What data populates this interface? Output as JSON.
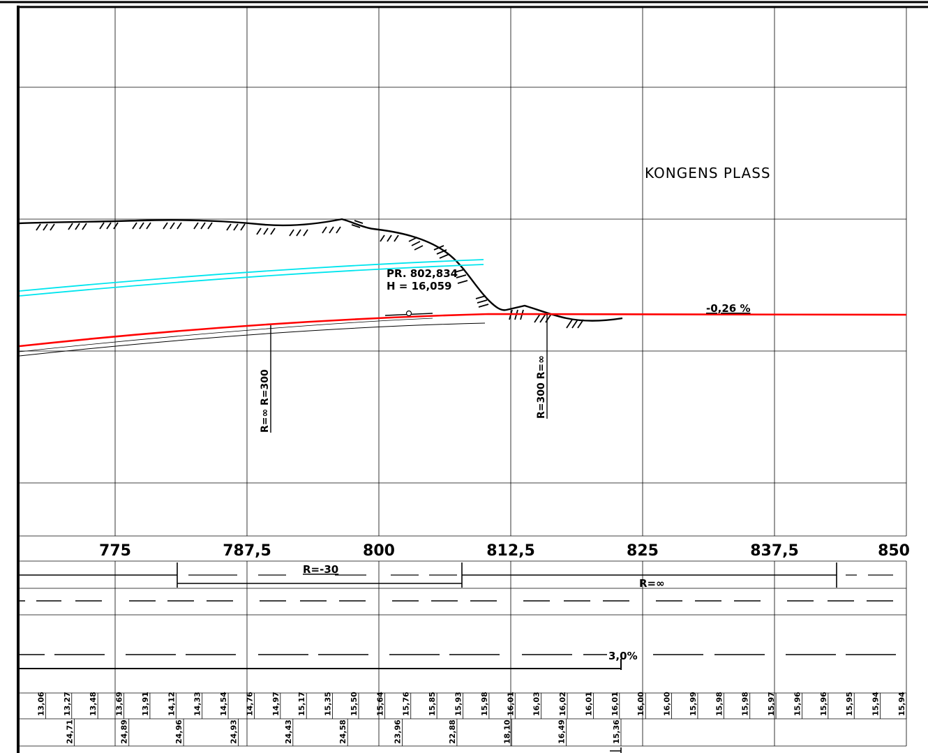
{
  "place_label": "KONGENS PLASS",
  "point_label": {
    "profile": "PR. 802,834",
    "height": "H = 16,059"
  },
  "gradient_label": "-0,26 %",
  "curve_labels": {
    "vertical_left": "R=∞ R=300",
    "vertical_right": "R=300 R=∞",
    "horizontal_left": "R=-30",
    "horizontal_right": "R=∞"
  },
  "crossfall_label": "3,0%",
  "stations": [
    "775",
    "787,5",
    "800",
    "812,5",
    "825",
    "837,5",
    "850"
  ],
  "elevations_row1": [
    "13,06",
    "13,27",
    "13,48",
    "13,69",
    "13,91",
    "14,12",
    "14,33",
    "14,54",
    "14,76",
    "14,97",
    "15,17",
    "15,35",
    "15,50",
    "15,64",
    "15,76",
    "15,85",
    "15,93",
    "15,98",
    "16,01",
    "16,03",
    "16,02",
    "16,01",
    "16,01",
    "16,00",
    "16,00",
    "15,99",
    "15,98",
    "15,98",
    "15,97",
    "15,96",
    "15,96",
    "15,95",
    "15,94",
    "15,94"
  ],
  "elevations_row2": [
    "24,71",
    "24,89",
    "24,96",
    "24,93",
    "24,43",
    "24,58",
    "23,96",
    "22,88",
    "18,10",
    "16,49",
    "15,36"
  ],
  "colors": {
    "road_profile": "#ff0000",
    "utility_lines": "#00e5ee",
    "ink": "#000000",
    "grid": "#000000"
  }
}
